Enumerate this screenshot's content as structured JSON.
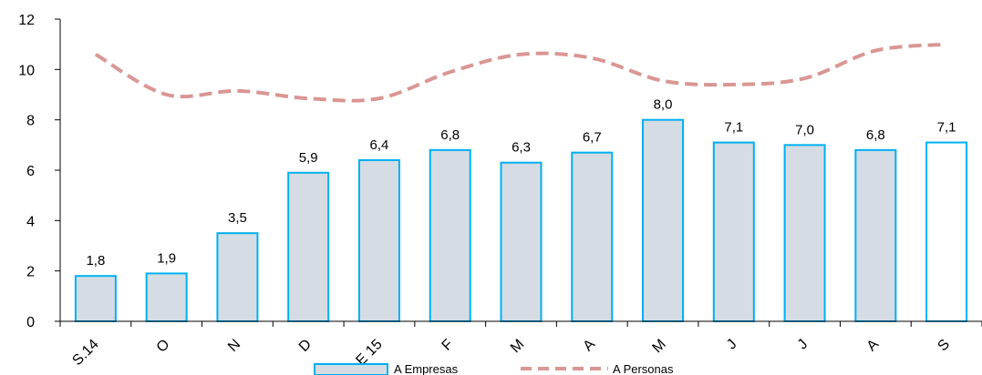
{
  "chart_data": {
    "type": "bar",
    "categories": [
      "S.14",
      "O",
      "N",
      "D",
      "E 15",
      "F",
      "M",
      "A",
      "M",
      "J",
      "J",
      "A",
      "S"
    ],
    "series": [
      {
        "name": "A Empresas",
        "type": "bar",
        "values": [
          1.8,
          1.9,
          3.5,
          5.9,
          6.4,
          6.8,
          6.3,
          6.7,
          8.0,
          7.1,
          7.0,
          6.8,
          7.1
        ],
        "labels": [
          "1,8",
          "1,9",
          "3,5",
          "5,9",
          "6,4",
          "6,8",
          "6,3",
          "6,7",
          "8,0",
          "7,1",
          "7,0",
          "6,8",
          "7,1"
        ]
      },
      {
        "name": "A Personas",
        "type": "line",
        "style": "dashed",
        "values": [
          10.6,
          9.0,
          9.15,
          8.85,
          8.85,
          9.9,
          10.6,
          10.45,
          9.55,
          9.4,
          9.65,
          10.75,
          11.0
        ]
      }
    ],
    "yticks": [
      "0",
      "2",
      "4",
      "6",
      "8",
      "10",
      "12"
    ],
    "ylim": [
      0,
      12
    ],
    "legend_position": "bottom-center",
    "colors": {
      "bar_fill": "#d6dce4",
      "bar_fill_last": "#ffffff",
      "bar_border": "#00b0f0",
      "line": "#d99694",
      "axis": "#000000"
    }
  }
}
